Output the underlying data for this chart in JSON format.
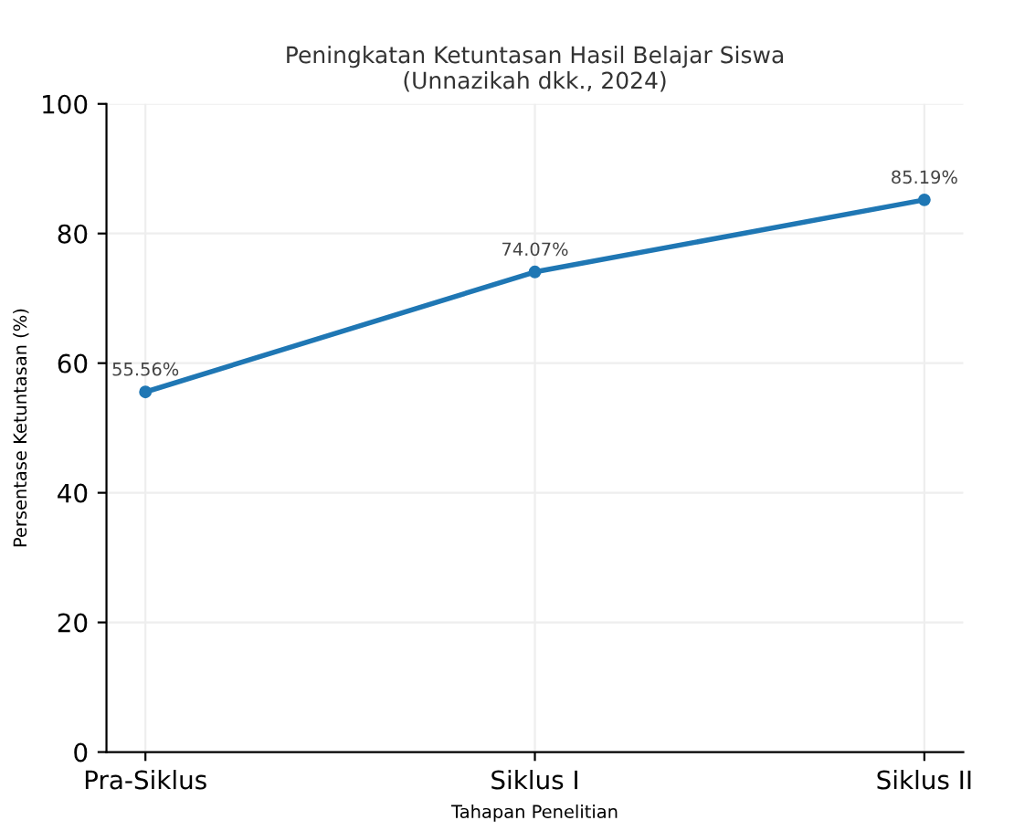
{
  "chart_data": {
    "type": "line",
    "title": "Peningkatan Ketuntasan Hasil Belajar Siswa\n(Unnazikah dkk., 2024)",
    "xlabel": "Tahapan Penelitian",
    "ylabel": "Persentase Ketuntasan (%)",
    "categories": [
      "Pra-Siklus",
      "Siklus I",
      "Siklus II"
    ],
    "series": [
      {
        "color": "#1f77b4",
        "values": [
          55.56,
          74.07,
          85.19
        ],
        "value_labels": [
          "55.56%",
          "74.07%",
          "85.19%"
        ]
      }
    ],
    "ylim": [
      0,
      100
    ],
    "yticks": [
      0,
      20,
      40,
      60,
      80,
      100
    ],
    "grid": true,
    "marker": "circle",
    "line_style": "solid"
  }
}
